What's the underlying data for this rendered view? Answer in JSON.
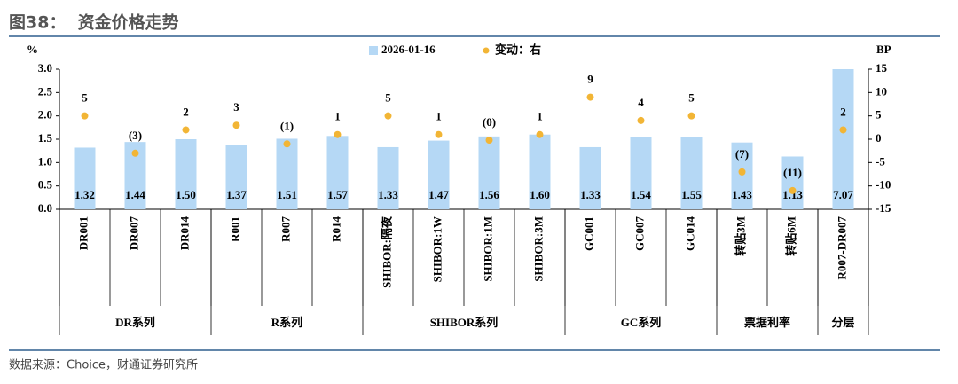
{
  "chart_data": {
    "type": "bar",
    "title": "图38：  资金价格走势",
    "source": "数据来源：Choice，财通证券研究所",
    "ylabel": "%",
    "y2label": "BP",
    "categories": [
      "DR001",
      "DR007",
      "DR014",
      "R001",
      "R007",
      "R014",
      "SHIBOR:隔夜",
      "SHIBOR:1W",
      "SHIBOR:1M",
      "SHIBOR:3M",
      "GC001",
      "GC007",
      "GC014",
      "转贴3M",
      "转贴6M",
      "R007-DR007"
    ],
    "groups": [
      {
        "name": "DR系列",
        "size": 3
      },
      {
        "name": "R系列",
        "size": 3
      },
      {
        "name": "SHIBOR系列",
        "size": 4
      },
      {
        "name": "GC系列",
        "size": 3
      },
      {
        "name": "票据利率",
        "size": 2
      },
      {
        "name": "分层",
        "size": 1
      }
    ],
    "series": [
      {
        "name": "2026-01-16",
        "type": "bar",
        "color": "#b5d8f5",
        "values": [
          1.32,
          1.44,
          1.5,
          1.37,
          1.51,
          1.57,
          1.33,
          1.47,
          1.56,
          1.6,
          1.33,
          1.54,
          1.55,
          1.43,
          1.13,
          7.07
        ],
        "value_labels": [
          "1.32",
          "1.44",
          "1.50",
          "1.37",
          "1.51",
          "1.57",
          "1.33",
          "1.47",
          "1.56",
          "1.60",
          "1.33",
          "1.54",
          "1.55",
          "1.43",
          "1.13",
          "7.07"
        ]
      },
      {
        "name": "变动：右",
        "type": "scatter",
        "axis": "y2",
        "color": "#f2b535",
        "negative_color": "#c0282d",
        "values": [
          5,
          -3,
          2,
          3,
          -1,
          1,
          5,
          1,
          -0.2,
          1,
          9,
          4,
          5,
          -7,
          -11,
          2
        ],
        "value_labels": [
          "5",
          "(3)",
          "2",
          "3",
          "(1)",
          "1",
          "5",
          "1",
          "(0)",
          "1",
          "9",
          "4",
          "5",
          "(7)",
          "(11)",
          "2"
        ]
      }
    ],
    "ylim": [
      0,
      3
    ],
    "yticks": [
      {
        "value": 0,
        "label": "0.0"
      },
      {
        "value": 0.5,
        "label": "0.5"
      },
      {
        "value": 1,
        "label": "1.0"
      },
      {
        "value": 1.5,
        "label": "1.5"
      },
      {
        "value": 2,
        "label": "2.0"
      },
      {
        "value": 2.5,
        "label": "2.5"
      },
      {
        "value": 3,
        "label": "3.0"
      }
    ],
    "y2lim": [
      -15,
      15
    ],
    "y2ticks": [
      -15,
      -10,
      -5,
      0,
      5,
      10,
      15
    ],
    "legend": "top"
  }
}
